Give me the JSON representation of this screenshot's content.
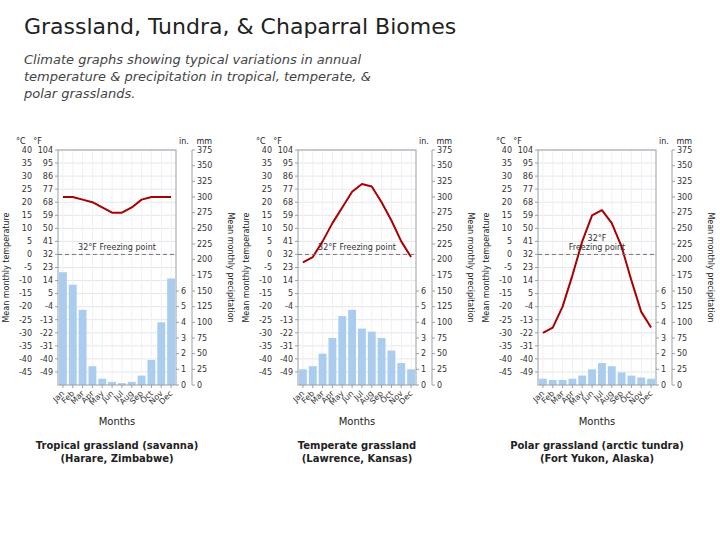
{
  "title": "Grassland, Tundra, & Chaparral Biomes",
  "subtitle": "Climate graphs showing typical variations in annual\ntemperature & precipitation in tropical, temperate, &\npolar grasslands.",
  "chart_data": [
    {
      "type": "bar",
      "title": "Tropical grassland (savanna)\n(Harare, Zimbabwe)",
      "x_label": "Months",
      "y_label": "Mean monthly temperature",
      "y2_label": "Mean monthly precipitation",
      "categories": [
        "Jan",
        "Feb",
        "Mar",
        "Apr",
        "May",
        "Jun",
        "Jul",
        "Aug",
        "Sep",
        "Oct",
        "Nov",
        "Dec"
      ],
      "series": [
        {
          "type": "bar",
          "axis": "y2",
          "color": "#AACCEE",
          "values": [
            180,
            160,
            120,
            30,
            10,
            5,
            3,
            5,
            15,
            40,
            100,
            170
          ]
        },
        {
          "type": "line",
          "color": "#AA0000",
          "values": [
            22,
            22,
            21,
            20,
            18,
            16,
            16,
            18,
            21,
            22,
            22,
            22
          ]
        }
      ],
      "ylim": [
        -50,
        40
      ],
      "yticks": [
        -45,
        -40,
        -35,
        -30,
        -25,
        -20,
        -15,
        -10,
        -5,
        0,
        5,
        10,
        15,
        20,
        25,
        30,
        35,
        40
      ],
      "yticks_f": [
        {
          "value": -45,
          "label": "-49"
        },
        {
          "value": -40,
          "label": "-40"
        },
        {
          "value": -35,
          "label": "-31"
        },
        {
          "value": -30,
          "label": "-22"
        },
        {
          "value": -25,
          "label": "-13"
        },
        {
          "value": -20,
          "label": "-4"
        },
        {
          "value": -15,
          "label": "5"
        },
        {
          "value": -10,
          "label": "14"
        },
        {
          "value": -5,
          "label": "23"
        },
        {
          "value": 0,
          "label": "32"
        },
        {
          "value": 5,
          "label": "41"
        },
        {
          "value": 10,
          "label": "50"
        },
        {
          "value": 15,
          "label": "59"
        },
        {
          "value": 20,
          "label": "68"
        },
        {
          "value": 25,
          "label": "77"
        },
        {
          "value": 30,
          "label": "86"
        },
        {
          "value": 35,
          "label": "95"
        },
        {
          "value": 40,
          "label": "104"
        }
      ],
      "y2lim": [
        0,
        375
      ],
      "y2ticks": [
        0,
        25,
        50,
        75,
        100,
        125,
        150,
        175,
        200,
        225,
        250,
        275,
        300,
        325,
        350,
        375
      ],
      "y2ticks_in": [
        {
          "value": 0,
          "label": "0"
        },
        {
          "value": 25,
          "label": "1"
        },
        {
          "value": 50,
          "label": "2"
        },
        {
          "value": 75,
          "label": "3"
        },
        {
          "value": 100,
          "label": "4"
        },
        {
          "value": 125,
          "label": "5"
        },
        {
          "value": 150,
          "label": "6"
        }
      ],
      "annotations": [
        {
          "text": "32°F Freezing point",
          "y": 0
        },
        {
          "text": "°C   °F"
        },
        {
          "text": "in.   mm"
        }
      ],
      "grid": true
    },
    {
      "type": "bar",
      "title": "Temperate grassland\n(Lawrence, Kansas)",
      "x_label": "Months",
      "y_label": "Mean monthly temperature",
      "y2_label": "Mean monthly precipitation",
      "categories": [
        "Jan",
        "Feb",
        "Mar",
        "Apr",
        "May",
        "Jun",
        "Jul",
        "Aug",
        "Sep",
        "Oct",
        "Nov",
        "Dec"
      ],
      "series": [
        {
          "type": "bar",
          "axis": "y2",
          "color": "#AACCEE",
          "values": [
            25,
            30,
            50,
            75,
            110,
            120,
            90,
            85,
            75,
            55,
            35,
            25
          ]
        },
        {
          "type": "line",
          "color": "#AA0000",
          "values": [
            -3,
            -1,
            5,
            12,
            18,
            24,
            27,
            26,
            20,
            13,
            5,
            -1
          ]
        }
      ],
      "ylim": [
        -50,
        40
      ],
      "yticks": [
        -45,
        -40,
        -35,
        -30,
        -25,
        -20,
        -15,
        -10,
        -5,
        0,
        5,
        10,
        15,
        20,
        25,
        30,
        35,
        40
      ],
      "yticks_f": [
        {
          "value": -45,
          "label": "-49"
        },
        {
          "value": -40,
          "label": "-40"
        },
        {
          "value": -35,
          "label": "-31"
        },
        {
          "value": -30,
          "label": "-22"
        },
        {
          "value": -25,
          "label": "-13"
        },
        {
          "value": -20,
          "label": "-4"
        },
        {
          "value": -15,
          "label": "5"
        },
        {
          "value": -10,
          "label": "14"
        },
        {
          "value": -5,
          "label": "23"
        },
        {
          "value": 0,
          "label": "32"
        },
        {
          "value": 5,
          "label": "41"
        },
        {
          "value": 10,
          "label": "50"
        },
        {
          "value": 15,
          "label": "59"
        },
        {
          "value": 20,
          "label": "68"
        },
        {
          "value": 25,
          "label": "77"
        },
        {
          "value": 30,
          "label": "86"
        },
        {
          "value": 35,
          "label": "95"
        },
        {
          "value": 40,
          "label": "104"
        }
      ],
      "y2lim": [
        0,
        375
      ],
      "y2ticks": [
        0,
        25,
        50,
        75,
        100,
        125,
        150,
        175,
        200,
        225,
        250,
        275,
        300,
        325,
        350,
        375
      ],
      "y2ticks_in": [
        {
          "value": 0,
          "label": "0"
        },
        {
          "value": 25,
          "label": "1"
        },
        {
          "value": 50,
          "label": "2"
        },
        {
          "value": 75,
          "label": "3"
        },
        {
          "value": 100,
          "label": "4"
        },
        {
          "value": 125,
          "label": "5"
        },
        {
          "value": 150,
          "label": "6"
        }
      ],
      "annotations": [
        {
          "text": "32°F Freezing point",
          "y": 0
        },
        {
          "text": "°C   °F"
        },
        {
          "text": "in.   mm"
        }
      ],
      "grid": true
    },
    {
      "type": "bar",
      "title": "Polar grassland (arctic tundra)\n(Fort Yukon, Alaska)",
      "x_label": "Months",
      "y_label": "Mean monthly temperature",
      "y2_label": "Mean monthly precipitation",
      "categories": [
        "Jan",
        "Feb",
        "Mar",
        "Apr",
        "May",
        "Jun",
        "Jul",
        "Aug",
        "Sep",
        "Oct",
        "Nov",
        "Dec"
      ],
      "series": [
        {
          "type": "bar",
          "axis": "y2",
          "color": "#AACCEE",
          "values": [
            10,
            8,
            8,
            10,
            15,
            25,
            35,
            30,
            20,
            15,
            12,
            10
          ]
        },
        {
          "type": "line",
          "color": "#AA0000",
          "values": [
            -30,
            -28,
            -20,
            -8,
            5,
            15,
            17,
            12,
            3,
            -10,
            -22,
            -28
          ]
        }
      ],
      "ylim": [
        -50,
        40
      ],
      "yticks": [
        -45,
        -40,
        -35,
        -30,
        -25,
        -20,
        -15,
        -10,
        -5,
        0,
        5,
        10,
        15,
        20,
        25,
        30,
        35,
        40
      ],
      "yticks_f": [
        {
          "value": -45,
          "label": "-49"
        },
        {
          "value": -40,
          "label": "-40"
        },
        {
          "value": -35,
          "label": "-31"
        },
        {
          "value": -30,
          "label": "-22"
        },
        {
          "value": -25,
          "label": "-13"
        },
        {
          "value": -20,
          "label": "-4"
        },
        {
          "value": -15,
          "label": "5"
        },
        {
          "value": -10,
          "label": "14"
        },
        {
          "value": -5,
          "label": "23"
        },
        {
          "value": 0,
          "label": "32"
        },
        {
          "value": 5,
          "label": "41"
        },
        {
          "value": 10,
          "label": "50"
        },
        {
          "value": 15,
          "label": "59"
        },
        {
          "value": 20,
          "label": "68"
        },
        {
          "value": 25,
          "label": "77"
        },
        {
          "value": 30,
          "label": "86"
        },
        {
          "value": 35,
          "label": "95"
        },
        {
          "value": 40,
          "label": "104"
        }
      ],
      "y2lim": [
        0,
        375
      ],
      "y2ticks": [
        0,
        25,
        50,
        75,
        100,
        125,
        150,
        175,
        200,
        225,
        250,
        275,
        300,
        325,
        350,
        375
      ],
      "y2ticks_in": [
        {
          "value": 0,
          "label": "0"
        },
        {
          "value": 25,
          "label": "1"
        },
        {
          "value": 50,
          "label": "2"
        },
        {
          "value": 75,
          "label": "3"
        },
        {
          "value": 100,
          "label": "4"
        },
        {
          "value": 125,
          "label": "5"
        },
        {
          "value": 150,
          "label": "6"
        }
      ],
      "annotations": [
        {
          "text": "32°F\nFreezing point",
          "y": 0
        },
        {
          "text": "°C   °F"
        },
        {
          "text": "in.   mm"
        }
      ],
      "grid": true
    }
  ]
}
